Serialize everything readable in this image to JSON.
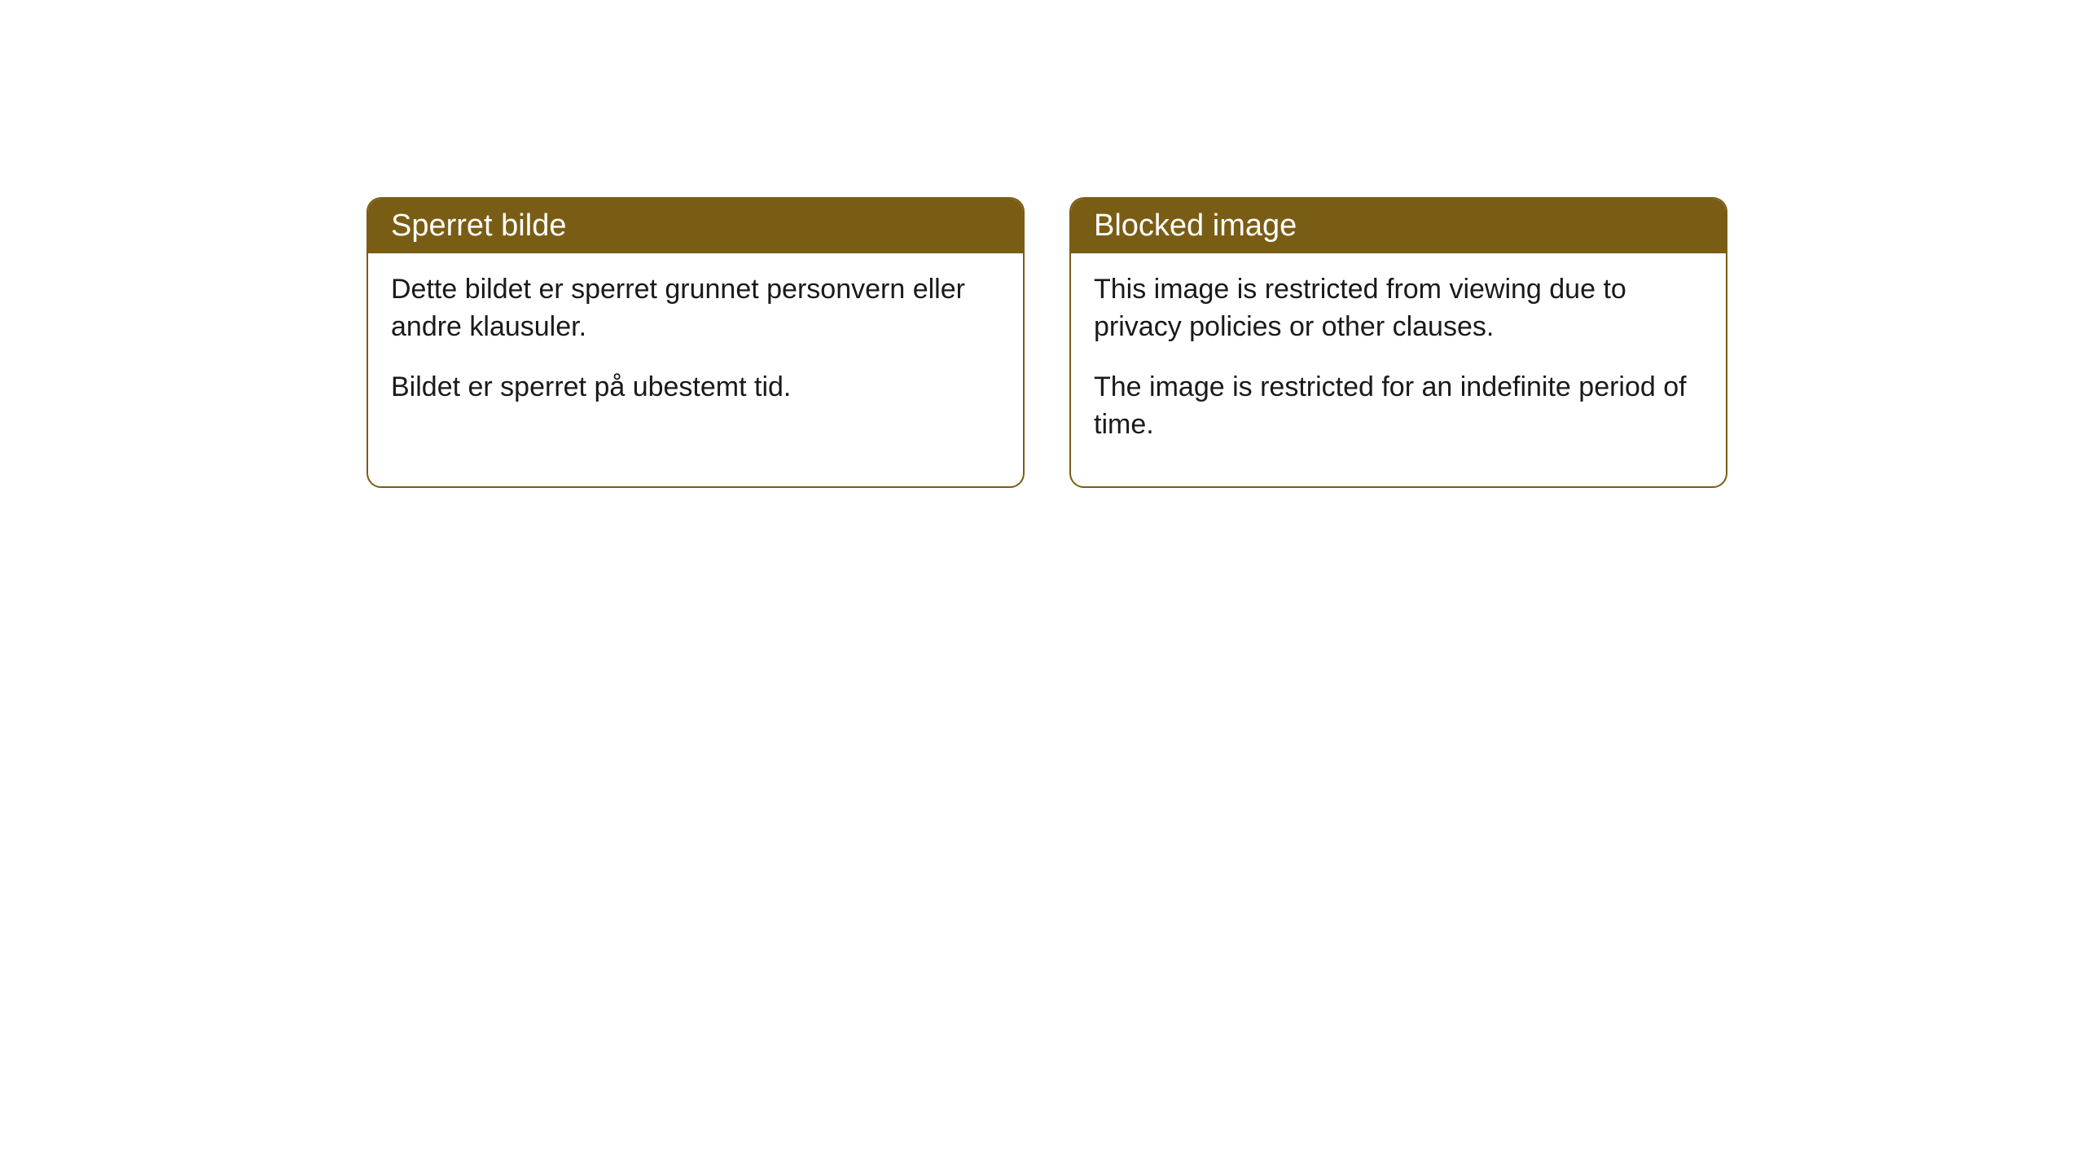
{
  "cards": [
    {
      "title": "Sperret bilde",
      "paragraph1": "Dette bildet er sperret grunnet personvern eller andre klausuler.",
      "paragraph2": "Bildet er sperret på ubestemt tid."
    },
    {
      "title": "Blocked image",
      "paragraph1": "This image is restricted from viewing due to privacy policies or other clauses.",
      "paragraph2": "The image is restricted for an indefinite period of time."
    }
  ],
  "styling": {
    "header_background": "#7a5d15",
    "header_text_color": "#ffffff",
    "border_color": "#7a5d15",
    "body_text_color": "#1a1a1a",
    "page_background": "#ffffff",
    "border_radius": 18,
    "header_font_size": 38,
    "body_font_size": 34
  }
}
